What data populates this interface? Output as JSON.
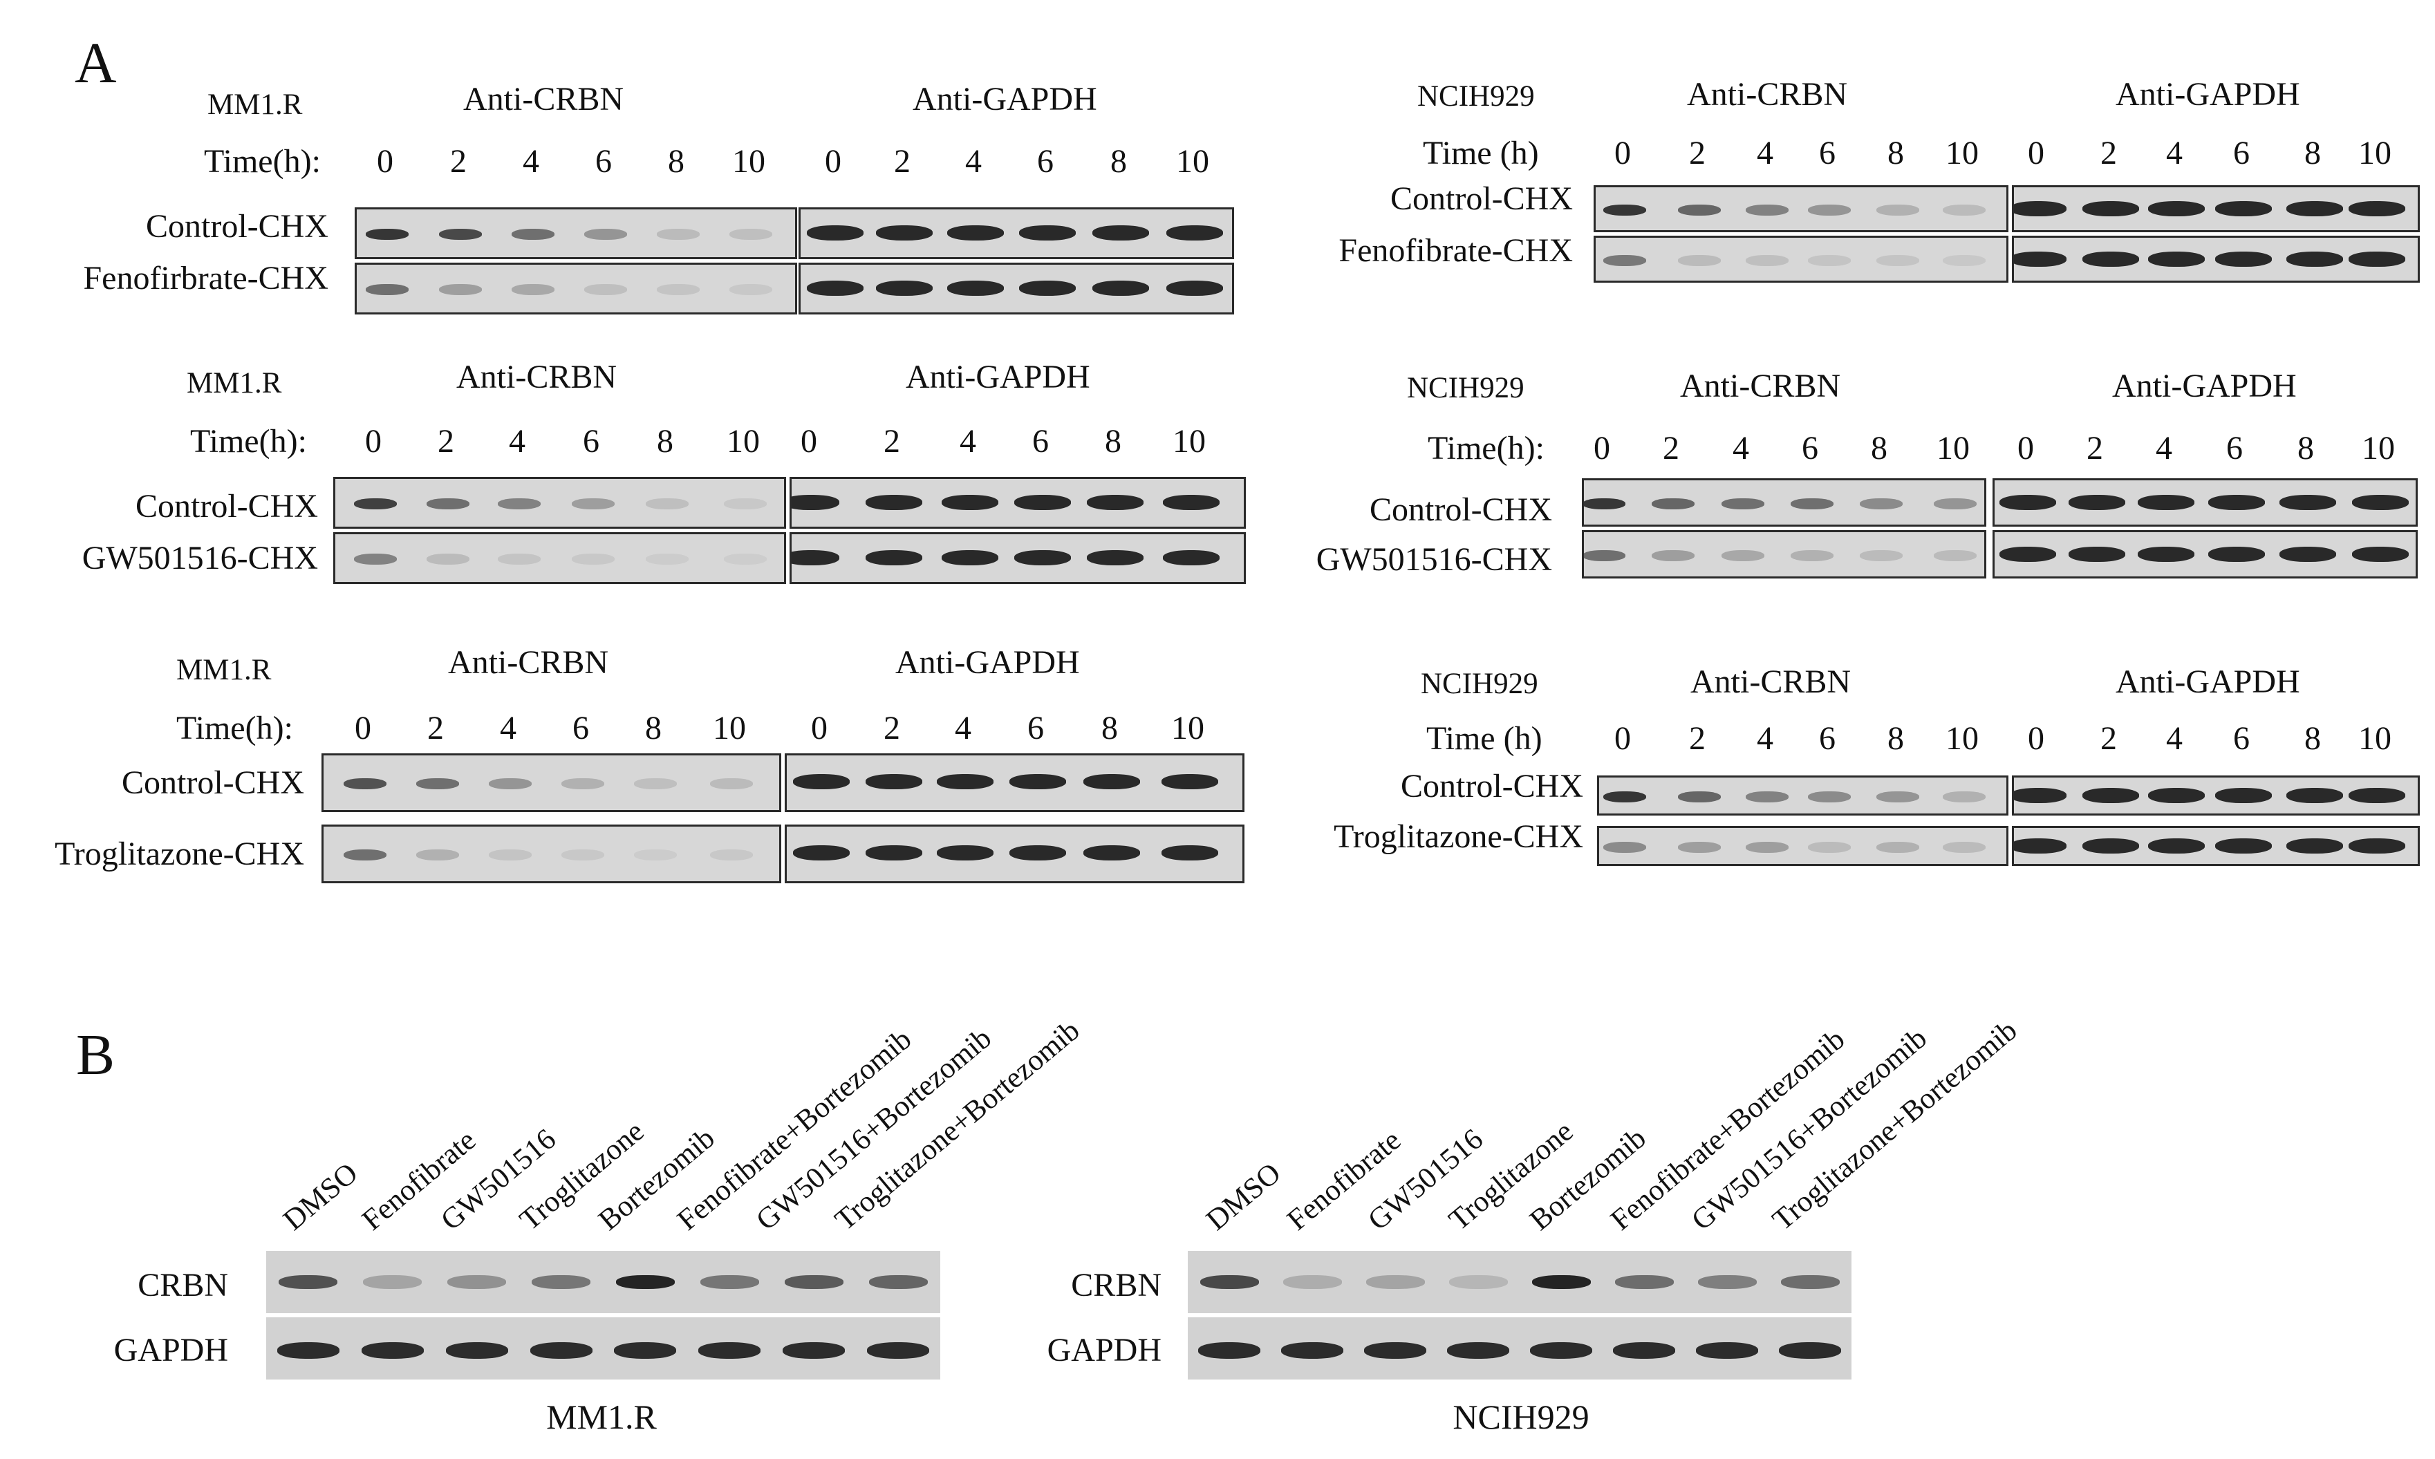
{
  "panels": {
    "A": {
      "label": "A",
      "blocks": [
        {
          "cell_line": "MM1.R",
          "left_header": "Anti-CRBN",
          "right_header": "Anti-GAPDH",
          "time_label": "Time(h):",
          "times": [
            "0",
            "2",
            "4",
            "6",
            "8",
            "10"
          ],
          "rows": [
            "Control-CHX",
            "Fenofirbrate-CHX"
          ]
        },
        {
          "cell_line": "NCIH929",
          "left_header": "Anti-CRBN",
          "right_header": "Anti-GAPDH",
          "time_label": "Time (h)",
          "times": [
            "0",
            "2",
            "4",
            "6",
            "8",
            "10"
          ],
          "rows": [
            "Control-CHX",
            "Fenofibrate-CHX"
          ]
        },
        {
          "cell_line": "MM1.R",
          "left_header": "Anti-CRBN",
          "right_header": "Anti-GAPDH",
          "time_label": "Time(h):",
          "times": [
            "0",
            "2",
            "4",
            "6",
            "8",
            "10"
          ],
          "rows": [
            "Control-CHX",
            "GW501516-CHX"
          ]
        },
        {
          "cell_line": "NCIH929",
          "left_header": "Anti-CRBN",
          "right_header": "Anti-GAPDH",
          "time_label": "Time(h):",
          "times": [
            "0",
            "2",
            "4",
            "6",
            "8",
            "10"
          ],
          "rows": [
            "Control-CHX",
            "GW501516-CHX"
          ]
        },
        {
          "cell_line": "MM1.R",
          "left_header": "Anti-CRBN",
          "right_header": "Anti-GAPDH",
          "time_label": "Time(h):",
          "times": [
            "0",
            "2",
            "4",
            "6",
            "8",
            "10"
          ],
          "rows": [
            "Control-CHX",
            "Troglitazone-CHX"
          ]
        },
        {
          "cell_line": "NCIH929",
          "left_header": "Anti-CRBN",
          "right_header": "Anti-GAPDH",
          "time_label": "Time (h)",
          "times": [
            "0",
            "2",
            "4",
            "6",
            "8",
            "10"
          ],
          "rows": [
            "Control-CHX",
            "Troglitazone-CHX"
          ]
        }
      ]
    },
    "B": {
      "label": "B",
      "lanes": [
        "DMSO",
        "Fenofibrate",
        "GW501516",
        "Troglitazone",
        "Bortezomib",
        "Fenofibrate+Bortezomib",
        "GW501516+Bortezomib",
        "Troglitazone+Bortezomib"
      ],
      "row_labels": [
        "CRBN",
        "GAPDH"
      ],
      "blots": [
        {
          "caption": "MM1.R"
        },
        {
          "caption": "NCIH929"
        }
      ]
    }
  },
  "band_intensity": {
    "A": [
      {
        "crbn": [
          [
            0.85,
            0.75,
            0.55,
            0.35,
            0.15,
            0.12
          ],
          [
            0.55,
            0.3,
            0.25,
            0.12,
            0.1,
            0.08
          ]
        ]
      },
      {
        "crbn": [
          [
            0.85,
            0.6,
            0.45,
            0.35,
            0.2,
            0.15
          ],
          [
            0.5,
            0.15,
            0.12,
            0.1,
            0.1,
            0.08
          ]
        ]
      },
      {
        "crbn": [
          [
            0.8,
            0.55,
            0.45,
            0.3,
            0.12,
            0.08
          ],
          [
            0.45,
            0.15,
            0.1,
            0.08,
            0.06,
            0.05
          ]
        ]
      },
      {
        "crbn": [
          [
            0.85,
            0.6,
            0.55,
            0.55,
            0.4,
            0.35
          ],
          [
            0.55,
            0.3,
            0.25,
            0.2,
            0.15,
            0.15
          ]
        ]
      },
      {
        "crbn": [
          [
            0.7,
            0.55,
            0.35,
            0.2,
            0.12,
            0.15
          ],
          [
            0.55,
            0.2,
            0.1,
            0.08,
            0.06,
            0.08
          ]
        ]
      },
      {
        "crbn": [
          [
            0.85,
            0.6,
            0.45,
            0.4,
            0.35,
            0.2
          ],
          [
            0.4,
            0.3,
            0.3,
            0.15,
            0.2,
            0.15
          ]
        ]
      }
    ],
    "B": [
      {
        "crbn": [
          0.7,
          0.25,
          0.35,
          0.5,
          0.95,
          0.5,
          0.65,
          0.6
        ]
      },
      {
        "crbn": [
          0.75,
          0.2,
          0.25,
          0.15,
          0.95,
          0.55,
          0.45,
          0.55
        ]
      }
    ]
  }
}
